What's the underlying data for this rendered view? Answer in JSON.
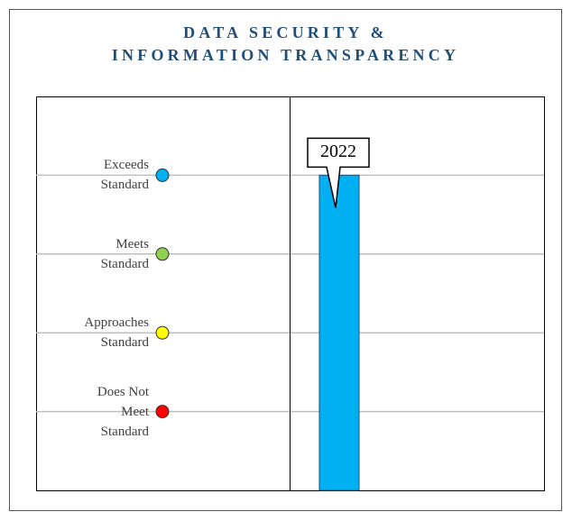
{
  "chart_data": {
    "type": "bar",
    "title": [
      "DATA SECURITY &",
      "INFORMATION TRANSPARENCY"
    ],
    "categories": [
      "2022"
    ],
    "values": [
      4
    ],
    "color": "#00b0f0",
    "ylim": [
      0,
      5
    ],
    "yticks": [
      {
        "value": 1,
        "label": "Does Not Meet Standard"
      },
      {
        "value": 2,
        "label": "Approaches Standard"
      },
      {
        "value": 3,
        "label": "Meets Standard"
      },
      {
        "value": 4,
        "label": "Exceeds Standard"
      }
    ],
    "tick_colors": [
      "#ff0000",
      "#ffff00",
      "#92d050",
      "#00b0f0"
    ],
    "grid": true
  }
}
